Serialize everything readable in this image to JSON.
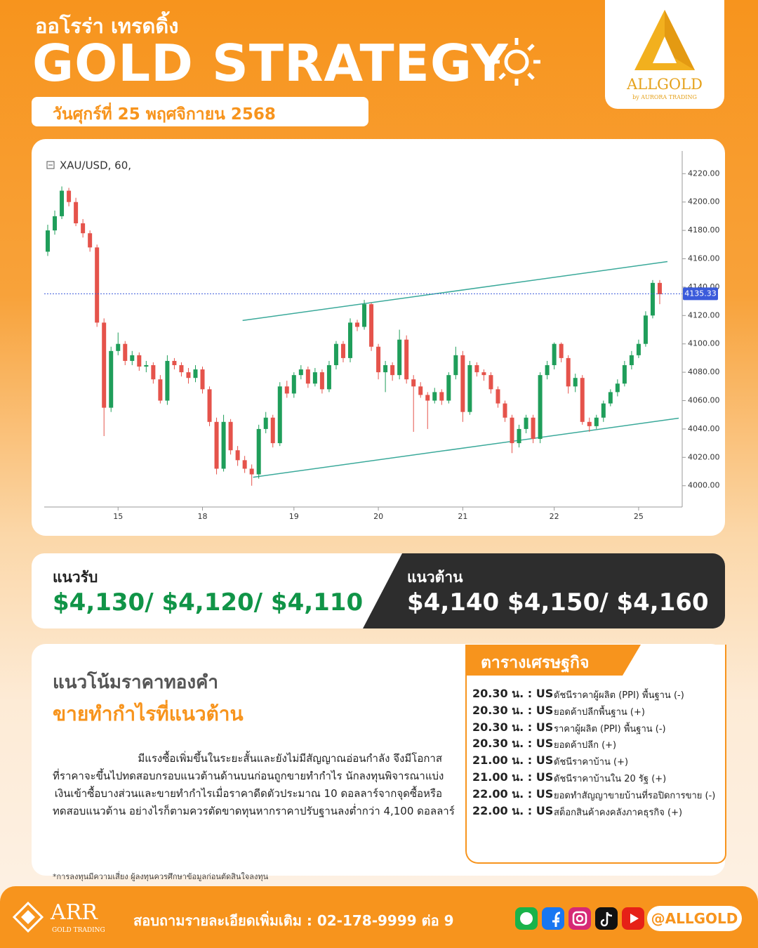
{
  "header": {
    "brand": "ออโรร่า เทรดดิ้ง",
    "title": "GOLD STRATEGY",
    "date": "วันศุกร์ที่ 25 พฤศจิกายน 2568",
    "logo": "ALLGOLD",
    "logo_sub": "by AURORA TRADING"
  },
  "chart_data": {
    "type": "candlestick",
    "symbol": "XAU/USD, 60,",
    "categories": [
      null,
      null,
      null,
      null,
      null,
      null,
      null,
      null,
      null,
      null,
      "15",
      null,
      null,
      null,
      null,
      null,
      null,
      null,
      null,
      null,
      null,
      null,
      "18",
      null,
      null,
      null,
      null,
      null,
      null,
      null,
      null,
      null,
      null,
      null,
      null,
      "19",
      null,
      null,
      null,
      null,
      null,
      null,
      null,
      null,
      null,
      null,
      null,
      "20",
      null,
      null,
      null,
      null,
      null,
      null,
      null,
      null,
      null,
      null,
      null,
      "21",
      null,
      null,
      null,
      null,
      null,
      null,
      null,
      null,
      null,
      null,
      null,
      null,
      "22",
      null,
      null,
      null,
      null,
      null,
      null,
      null,
      null,
      null,
      null,
      null,
      "25",
      null,
      null,
      null
    ],
    "open": [
      4165,
      4180,
      4190,
      4208,
      4200,
      4185,
      4178,
      4168,
      4115,
      4055,
      4095,
      4100,
      4088,
      4092,
      4084,
      4085,
      4075,
      4060,
      4088,
      4085,
      4080,
      4076,
      4082,
      4068,
      4045,
      4012,
      4045,
      4025,
      4018,
      4012,
      4008,
      4040,
      4048,
      4030,
      4070,
      4065,
      4078,
      4082,
      4072,
      4080,
      4068,
      4085,
      4100,
      4090,
      4115,
      4112,
      4128,
      4098,
      4080,
      4085,
      4078,
      4103,
      4075,
      4070,
      4064,
      4060,
      4066,
      4060,
      4078,
      4092,
      4052,
      4085,
      4080,
      4078,
      4068,
      4058,
      4048,
      4030,
      4040,
      4048,
      4033,
      4078,
      4085,
      4100,
      4090,
      4070,
      4076,
      4045,
      4042,
      4048,
      4058,
      4066,
      4072,
      4085,
      4092,
      4100,
      4120,
      4143
    ],
    "high": [
      4184,
      4194,
      4211,
      4210,
      4203,
      4188,
      4180,
      4170,
      4118,
      4098,
      4108,
      4102,
      4095,
      4094,
      4088,
      4087,
      4078,
      4092,
      4090,
      4087,
      4083,
      4085,
      4084,
      4070,
      4048,
      4050,
      4047,
      4028,
      4021,
      4015,
      4043,
      4052,
      4050,
      4073,
      4074,
      4080,
      4085,
      4084,
      4083,
      4082,
      4088,
      4102,
      4102,
      4118,
      4117,
      4131,
      4129,
      4100,
      4088,
      4087,
      4110,
      4106,
      4078,
      4073,
      4066,
      4069,
      4068,
      4080,
      4098,
      4095,
      4088,
      4087,
      4082,
      4080,
      4070,
      4060,
      4050,
      4043,
      4050,
      4050,
      4080,
      4088,
      4101,
      4101,
      4092,
      4079,
      4078,
      4048,
      4050,
      4060,
      4068,
      4075,
      4088,
      4095,
      4103,
      4123,
      4145,
      4145
    ],
    "low": [
      4162,
      4177,
      4188,
      4197,
      4183,
      4175,
      4165,
      4112,
      4035,
      4052,
      4092,
      4085,
      4085,
      4081,
      4080,
      4072,
      4058,
      4057,
      4082,
      4077,
      4072,
      4073,
      4065,
      4042,
      4008,
      4010,
      4022,
      4014,
      4009,
      4000,
      4005,
      4037,
      4027,
      4028,
      4062,
      4062,
      4075,
      4069,
      4070,
      4065,
      4066,
      4082,
      4087,
      4087,
      4109,
      4110,
      4095,
      4075,
      4066,
      4074,
      4075,
      4072,
      4038,
      4062,
      4040,
      4058,
      4057,
      4058,
      4075,
      4045,
      4050,
      4077,
      4074,
      4065,
      4055,
      4045,
      4023,
      4027,
      4037,
      4030,
      4030,
      4075,
      4082,
      4087,
      4065,
      4066,
      4043,
      4038,
      4040,
      4045,
      4056,
      4063,
      4070,
      4082,
      4090,
      4098,
      4118,
      4128
    ],
    "close": [
      4180,
      4190,
      4208,
      4200,
      4185,
      4178,
      4168,
      4115,
      4055,
      4095,
      4100,
      4088,
      4092,
      4084,
      4085,
      4075,
      4060,
      4088,
      4085,
      4080,
      4076,
      4082,
      4068,
      4045,
      4012,
      4045,
      4025,
      4018,
      4012,
      4008,
      4040,
      4048,
      4030,
      4070,
      4065,
      4078,
      4082,
      4072,
      4080,
      4068,
      4085,
      4100,
      4090,
      4115,
      4112,
      4128,
      4098,
      4080,
      4085,
      4078,
      4103,
      4075,
      4070,
      4064,
      4060,
      4066,
      4060,
      4078,
      4092,
      4052,
      4085,
      4080,
      4078,
      4068,
      4058,
      4048,
      4030,
      4040,
      4048,
      4033,
      4078,
      4085,
      4100,
      4090,
      4070,
      4076,
      4045,
      4042,
      4048,
      4058,
      4066,
      4072,
      4085,
      4092,
      4100,
      4120,
      4143,
      4135
    ],
    "up_color": "#1f9e5a",
    "down_color": "#e5534b",
    "ylim": [
      3985,
      4236
    ],
    "yticks": [
      {
        "value": 4000,
        "label": "4000.00"
      },
      {
        "value": 4020,
        "label": "4020.00"
      },
      {
        "value": 4040,
        "label": "4040.00"
      },
      {
        "value": 4060,
        "label": "4060.00"
      },
      {
        "value": 4080,
        "label": "4080.00"
      },
      {
        "value": 4100,
        "label": "4100.00"
      },
      {
        "value": 4120,
        "label": "4120.00"
      },
      {
        "value": 4140,
        "label": "4140.00"
      },
      {
        "value": 4160,
        "label": "4160.00"
      },
      {
        "value": 4180,
        "label": "4180.00"
      },
      {
        "value": 4200,
        "label": "4200.00"
      },
      {
        "value": 4220,
        "label": "4220.00"
      }
    ],
    "last_price": 4135.33,
    "last_price_color": "#3b5bdb",
    "trendlines": [
      {
        "x": [
          27.7,
          88.1
        ],
        "y": [
          4116.5,
          4158
        ]
      },
      {
        "x": [
          29.2,
          89.7
        ],
        "y": [
          4006,
          4047.6
        ]
      }
    ],
    "trendline_color": "#3aa99a"
  },
  "levels": {
    "support_title": "แนวรับ",
    "support": "$4,130/ $4,120/ $4,110",
    "resistance_title": "แนวต้าน",
    "resistance": "$4,140 $4,150/ $4,160"
  },
  "analysis": {
    "title": "แนวโน้มราคาทองคำ",
    "signal": "ขายทำกำไรที่แนวต้าน",
    "paragraph": [
      "มีแรงซื้อเพิ่มขึ้นในระยะสั้นและยังไม่มีสัญญาณอ่อนกำลัง จึงมีโอกาส",
      "ที่ราคาจะขึ้นไปทดสอบกรอบแนวต้านด้านบนก่อนถูกขายทำกำไร นักลงทุนพิจารณาแบ่ง",
      "เงินเข้าซื้อบางส่วนและขายทำกำไรเมื่อราคาดีดตัวประมาณ 10 ดอลลาร์จากจุดซื้อหรือ",
      "ทดสอบแนวต้าน อย่างไรก็ตามควรตัดขาดทุนหากราคาปรับฐานลงต่ำกว่า 4,100 ดอลลาร์"
    ]
  },
  "calendar": {
    "title": "ตารางเศรษฐกิจ",
    "rows": [
      [
        "20.30 น. : US",
        "ดัชนีราคาผู้ผลิต (PPI) พื้นฐาน (-)"
      ],
      [
        "20.30 น. : US",
        "ยอดค้าปลีกพื้นฐาน (+)"
      ],
      [
        "20.30 น. : US",
        "ราคาผู้ผลิต (PPI) พื้นฐาน (-)"
      ],
      [
        "20.30 น. : US",
        "ยอดค้าปลีก (+)"
      ],
      [
        "21.00 น. : US",
        "ดัชนีราคาบ้าน (+)"
      ],
      [
        "21.00 น. : US",
        "ดัชนีราคาบ้านใน 20 รัฐ (+)"
      ],
      [
        "22.00 น. : US",
        "ยอดทำสัญญาขายบ้านที่รอปิดการขาย (-)"
      ],
      [
        "22.00 น. : US",
        "สต็อกสินค้าคงคลังภาคธุรกิจ (+)"
      ]
    ]
  },
  "disclaimer": "*การลงทุนมีความเสี่ยง ผู้ลงทุนควรศึกษาข้อมูลก่อนตัดสินใจลงทุน",
  "footer": {
    "brand": "ARR",
    "brand_sub": "GOLD TRADING",
    "contact": "สอบถามรายละเอียดเพิ่มเติม : 02-178-9999 ต่อ 9",
    "handle": "@ALLGOLD"
  }
}
